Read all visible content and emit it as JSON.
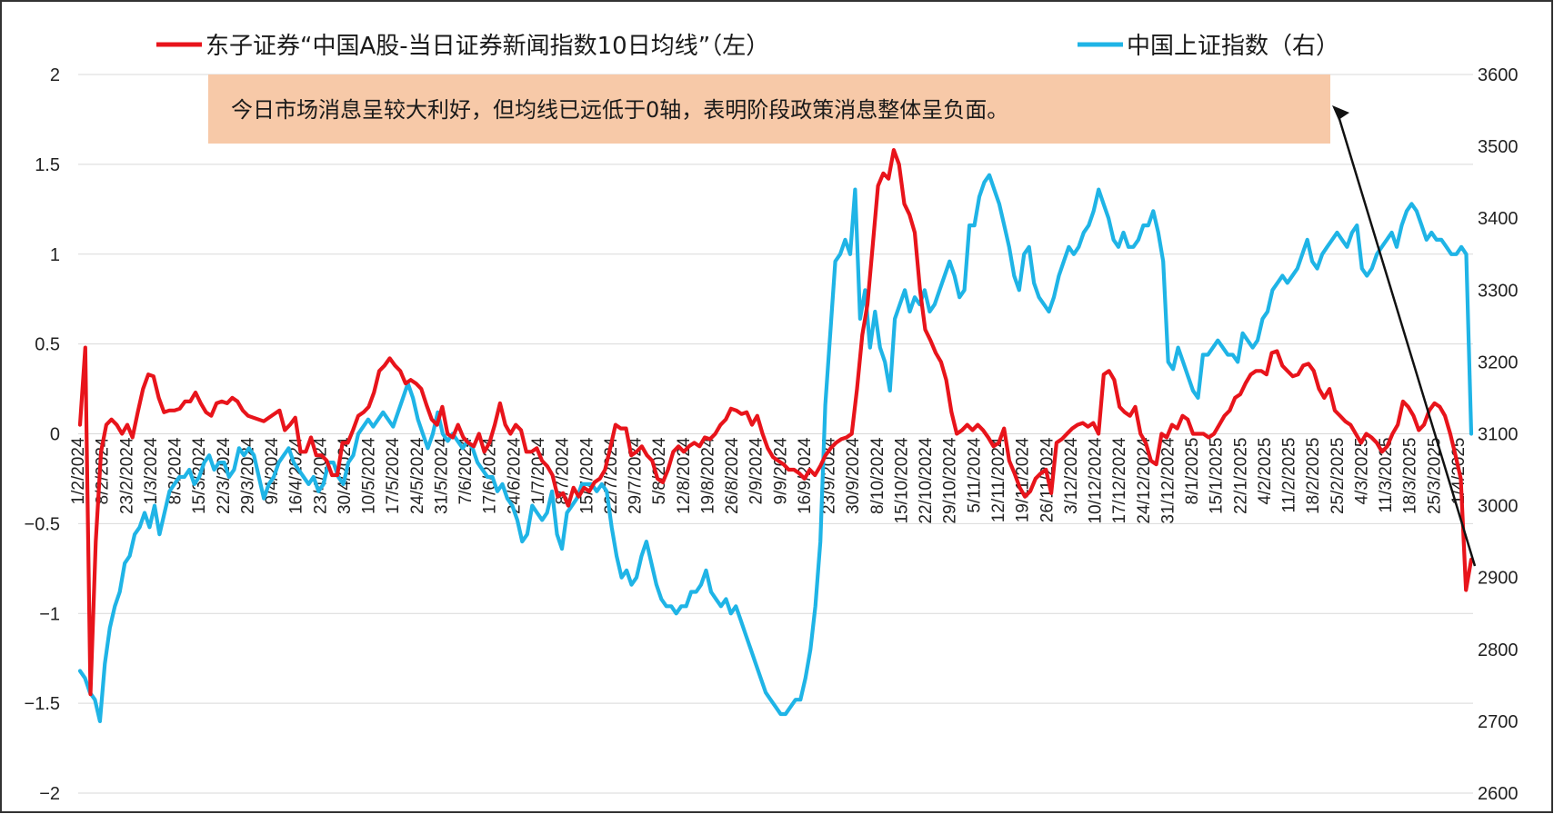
{
  "chart_data": {
    "type": "line",
    "title": "",
    "legend": {
      "position": "top"
    },
    "grid": true,
    "x_ticks": [
      "1/2/2024",
      "8/2/2024",
      "23/2/2024",
      "1/3/2024",
      "8/3/2024",
      "15/3/2024",
      "22/3/2024",
      "29/3/2024",
      "9/4/2024",
      "16/4/2024",
      "23/4/2024",
      "30/4/2024",
      "10/5/2024",
      "17/5/2024",
      "24/5/2024",
      "31/5/2024",
      "7/6/2024",
      "17/6/2024",
      "24/6/2024",
      "1/7/2024",
      "8/7/2024",
      "15/7/2024",
      "22/7/2024",
      "29/7/2024",
      "5/8/2024",
      "12/8/2024",
      "19/8/2024",
      "26/8/2024",
      "2/9/2024",
      "9/9/2024",
      "16/9/2024",
      "23/9/2024",
      "30/9/2024",
      "8/10/2024",
      "15/10/2024",
      "22/10/2024",
      "29/10/2024",
      "5/11/2024",
      "12/11/2024",
      "19/11/2024",
      "26/11/2024",
      "3/12/2024",
      "10/12/2024",
      "17/12/2024",
      "24/12/2024",
      "31/12/2024",
      "8/1/2025",
      "15/1/2025",
      "22/1/2025",
      "4/2/2025",
      "11/2/2025",
      "18/2/2025",
      "25/2/2025",
      "4/3/2025",
      "11/3/2025",
      "18/3/2025",
      "25/3/2025",
      "1/4/2025"
    ],
    "y_left": {
      "min": -2,
      "max": 2,
      "ticks": [
        "2",
        "1.5",
        "1",
        "0.5",
        "0",
        "−0.5",
        "−1",
        "−1.5",
        "−2"
      ]
    },
    "y_right": {
      "min": 2600,
      "max": 3600,
      "ticks": [
        "3600",
        "3500",
        "3400",
        "3300",
        "3200",
        "3100",
        "3000",
        "2900",
        "2800",
        "2700",
        "2600"
      ]
    },
    "series": [
      {
        "name": "东子证券“中国A股-当日证券新闻指数10日均线”（左）",
        "axis": "left",
        "color": "#e8141b",
        "values": [
          0.05,
          0.48,
          -1.45,
          -0.6,
          -0.1,
          0.05,
          0.08,
          0.05,
          0.0,
          0.05,
          -0.02,
          0.12,
          0.25,
          0.33,
          0.32,
          0.2,
          0.12,
          0.13,
          0.13,
          0.14,
          0.18,
          0.18,
          0.23,
          0.17,
          0.12,
          0.1,
          0.17,
          0.18,
          0.17,
          0.2,
          0.18,
          0.13,
          0.1,
          0.09,
          0.08,
          0.07,
          0.09,
          0.11,
          0.13,
          0.02,
          0.05,
          0.09,
          -0.1,
          -0.1,
          -0.02,
          -0.12,
          -0.12,
          -0.15,
          -0.23,
          -0.23,
          -0.05,
          -0.05,
          0.02,
          0.1,
          0.12,
          0.15,
          0.23,
          0.35,
          0.38,
          0.42,
          0.38,
          0.35,
          0.28,
          0.3,
          0.28,
          0.25,
          0.16,
          0.08,
          0.05,
          0.15,
          0.0,
          -0.02,
          0.05,
          -0.02,
          -0.05,
          -0.07,
          0.0,
          -0.1,
          -0.05,
          0.05,
          0.17,
          0.05,
          0.0,
          0.05,
          0.02,
          -0.1,
          -0.1,
          -0.08,
          -0.15,
          -0.18,
          -0.23,
          -0.35,
          -0.33,
          -0.4,
          -0.3,
          -0.35,
          -0.3,
          -0.32,
          -0.27,
          -0.25,
          -0.2,
          -0.08,
          0.05,
          0.03,
          0.03,
          -0.12,
          -0.1,
          -0.07,
          -0.12,
          -0.15,
          -0.25,
          -0.27,
          -0.2,
          -0.1,
          -0.07,
          -0.1,
          -0.07,
          -0.05,
          -0.07,
          -0.02,
          -0.03,
          0.0,
          0.05,
          0.08,
          0.14,
          0.13,
          0.11,
          0.12,
          0.05,
          0.1,
          0.0,
          -0.08,
          -0.13,
          -0.15,
          -0.17,
          -0.2,
          -0.2,
          -0.22,
          -0.25,
          -0.2,
          -0.23,
          -0.18,
          -0.12,
          -0.08,
          -0.05,
          -0.03,
          -0.02,
          0.0,
          0.25,
          0.55,
          0.72,
          1.05,
          1.38,
          1.45,
          1.42,
          1.58,
          1.5,
          1.28,
          1.22,
          1.12,
          0.8,
          0.58,
          0.52,
          0.45,
          0.4,
          0.3,
          0.12,
          0.0,
          0.02,
          0.05,
          0.02,
          0.05,
          0.02,
          -0.02,
          -0.07,
          -0.05,
          0.03,
          -0.15,
          -0.22,
          -0.3,
          -0.35,
          -0.32,
          -0.25,
          -0.22,
          -0.2,
          -0.33,
          -0.05,
          -0.03,
          0.0,
          0.03,
          0.05,
          0.06,
          0.04,
          0.06,
          0.0,
          0.33,
          0.35,
          0.3,
          0.15,
          0.12,
          0.1,
          0.15,
          0.0,
          -0.05,
          -0.15,
          -0.17,
          0.0,
          -0.02,
          0.05,
          0.03,
          0.1,
          0.08,
          0.0,
          0.0,
          0.0,
          -0.02,
          0.0,
          0.05,
          0.1,
          0.13,
          0.2,
          0.22,
          0.28,
          0.33,
          0.35,
          0.35,
          0.33,
          0.45,
          0.46,
          0.38,
          0.35,
          0.32,
          0.33,
          0.38,
          0.39,
          0.35,
          0.25,
          0.2,
          0.25,
          0.13,
          0.1,
          0.07,
          0.05,
          0.0,
          -0.05,
          0.0,
          -0.02,
          -0.05,
          -0.1,
          -0.07,
          0.0,
          0.05,
          0.18,
          0.15,
          0.1,
          0.02,
          0.05,
          0.13,
          0.17,
          0.15,
          0.1,
          0.0,
          -0.12,
          -0.25,
          -0.87,
          -0.7
        ]
      },
      {
        "name": "中国上证指数（右）",
        "axis": "right",
        "color": "#1fb4e6",
        "values": [
          2770,
          2760,
          2740,
          2730,
          2700,
          2780,
          2830,
          2860,
          2880,
          2920,
          2930,
          2960,
          2970,
          2990,
          2970,
          3000,
          2960,
          2990,
          3020,
          3030,
          3040,
          3040,
          3050,
          3030,
          3040,
          3060,
          3070,
          3050,
          3060,
          3060,
          3040,
          3050,
          3080,
          3070,
          3080,
          3070,
          3040,
          3010,
          3030,
          3040,
          3060,
          3070,
          3080,
          3060,
          3050,
          3040,
          3030,
          3040,
          3020,
          3030,
          3060,
          3060,
          3040,
          3030,
          3060,
          3070,
          3100,
          3110,
          3120,
          3110,
          3120,
          3130,
          3120,
          3110,
          3130,
          3150,
          3170,
          3150,
          3120,
          3100,
          3080,
          3100,
          3130,
          3100,
          3090,
          3100,
          3090,
          3080,
          3090,
          3080,
          3060,
          3050,
          3040,
          3040,
          3020,
          3030,
          3010,
          3000,
          2980,
          2950,
          2960,
          3000,
          2990,
          2980,
          2990,
          3020,
          2960,
          2940,
          2990,
          3000,
          3010,
          3030,
          3030,
          3030,
          3020,
          3030,
          3020,
          2970,
          2930,
          2900,
          2910,
          2890,
          2900,
          2930,
          2950,
          2920,
          2890,
          2870,
          2860,
          2860,
          2850,
          2860,
          2860,
          2880,
          2880,
          2890,
          2910,
          2880,
          2870,
          2860,
          2870,
          2850,
          2860,
          2840,
          2820,
          2800,
          2780,
          2760,
          2740,
          2730,
          2720,
          2710,
          2710,
          2720,
          2730,
          2730,
          2760,
          2800,
          2860,
          2950,
          3140,
          3240,
          3340,
          3350,
          3370,
          3350,
          3440,
          3260,
          3300,
          3220,
          3270,
          3220,
          3200,
          3160,
          3260,
          3280,
          3300,
          3270,
          3290,
          3280,
          3300,
          3270,
          3280,
          3300,
          3320,
          3340,
          3320,
          3290,
          3300,
          3390,
          3390,
          3430,
          3450,
          3460,
          3440,
          3420,
          3390,
          3360,
          3320,
          3300,
          3350,
          3360,
          3310,
          3290,
          3280,
          3270,
          3290,
          3320,
          3340,
          3360,
          3350,
          3360,
          3380,
          3390,
          3410,
          3440,
          3420,
          3400,
          3370,
          3360,
          3380,
          3360,
          3360,
          3370,
          3390,
          3390,
          3410,
          3380,
          3340,
          3200,
          3190,
          3220,
          3200,
          3180,
          3160,
          3150,
          3210,
          3210,
          3220,
          3230,
          3220,
          3210,
          3210,
          3200,
          3240,
          3230,
          3220,
          3230,
          3260,
          3270,
          3300,
          3310,
          3320,
          3310,
          3320,
          3330,
          3350,
          3370,
          3340,
          3330,
          3350,
          3360,
          3370,
          3380,
          3370,
          3360,
          3380,
          3390,
          3330,
          3320,
          3330,
          3350,
          3360,
          3370,
          3380,
          3360,
          3390,
          3410,
          3420,
          3410,
          3390,
          3370,
          3380,
          3370,
          3370,
          3360,
          3350,
          3350,
          3360,
          3350,
          3100
        ]
      }
    ],
    "annotation": {
      "text": "今日市场消息呈较大利好，但均线已远低于0轴，表明阶段政策消息整体呈负面。",
      "box_color": "#f7c9a8"
    }
  }
}
